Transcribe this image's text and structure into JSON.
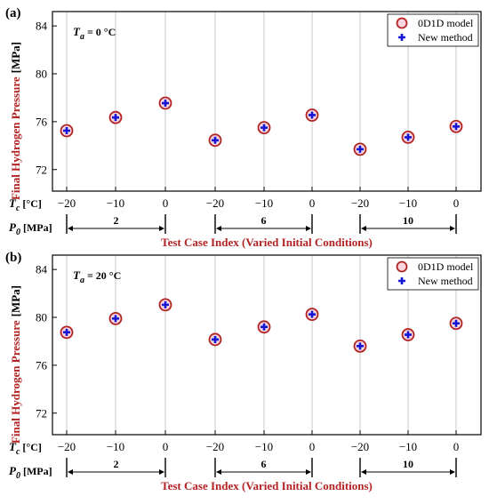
{
  "chart_data": [
    {
      "type": "scatter",
      "panel_label": "(a)",
      "annotation": {
        "symbol": "T",
        "subscript": "a",
        "value": "= 0 °C"
      },
      "ylabel": "Final Hydrogen Pressure",
      "ylabel_unit": "[MPa]",
      "xlabel": "Test Case Index (Varied Initial Conditions)",
      "ylim": [
        70.2,
        85.2
      ],
      "yticks": [
        "72",
        "76",
        "80",
        "84"
      ],
      "ytick_values": [
        72,
        76,
        80,
        84
      ],
      "grid_x": true,
      "legend_position": "top-right",
      "row1": {
        "symbol": "T",
        "subscript": "c",
        "unit": "[°C]"
      },
      "row2": {
        "symbol": "P",
        "subscript": "0",
        "unit": "[MPa]"
      },
      "tc_labels": [
        "−20",
        "−10",
        "0",
        "−20",
        "−10",
        "0",
        "−20",
        "−10",
        "0"
      ],
      "p0_groups": [
        "2",
        "6",
        "10"
      ],
      "series": [
        {
          "name": "0D1D model",
          "values": [
            75.25,
            76.35,
            77.55,
            74.45,
            75.5,
            76.55,
            73.7,
            74.7,
            75.6
          ]
        },
        {
          "name": "New method",
          "values": [
            75.25,
            76.35,
            77.55,
            74.45,
            75.5,
            76.55,
            73.7,
            74.7,
            75.6
          ]
        }
      ]
    },
    {
      "type": "scatter",
      "panel_label": "(b)",
      "annotation": {
        "symbol": "T",
        "subscript": "a",
        "value": "= 20 °C"
      },
      "ylabel": "Final Hydrogen Pressure",
      "ylabel_unit": "[MPa]",
      "xlabel": "Test Case Index (Varied Initial Conditions)",
      "ylim": [
        70.2,
        85.2
      ],
      "yticks": [
        "72",
        "76",
        "80",
        "84"
      ],
      "ytick_values": [
        72,
        76,
        80,
        84
      ],
      "grid_x": true,
      "legend_position": "top-right",
      "row1": {
        "symbol": "T",
        "subscript": "c",
        "unit": "[°C]"
      },
      "row2": {
        "symbol": "P",
        "subscript": "0",
        "unit": "[MPa]"
      },
      "tc_labels": [
        "−20",
        "−10",
        "0",
        "−20",
        "−10",
        "0",
        "−20",
        "−10",
        "0"
      ],
      "p0_groups": [
        "2",
        "6",
        "10"
      ],
      "series": [
        {
          "name": "0D1D model",
          "values": [
            78.75,
            79.9,
            81.05,
            78.15,
            79.2,
            80.25,
            77.6,
            78.55,
            79.5
          ]
        },
        {
          "name": "New method",
          "values": [
            78.75,
            79.9,
            81.05,
            78.15,
            79.2,
            80.25,
            77.6,
            78.55,
            79.5
          ]
        }
      ]
    }
  ],
  "colors": {
    "model_marker": "#b22222",
    "method_marker": "#1515d6",
    "title_red": "#b22222",
    "grid": "#c8c8c8"
  }
}
